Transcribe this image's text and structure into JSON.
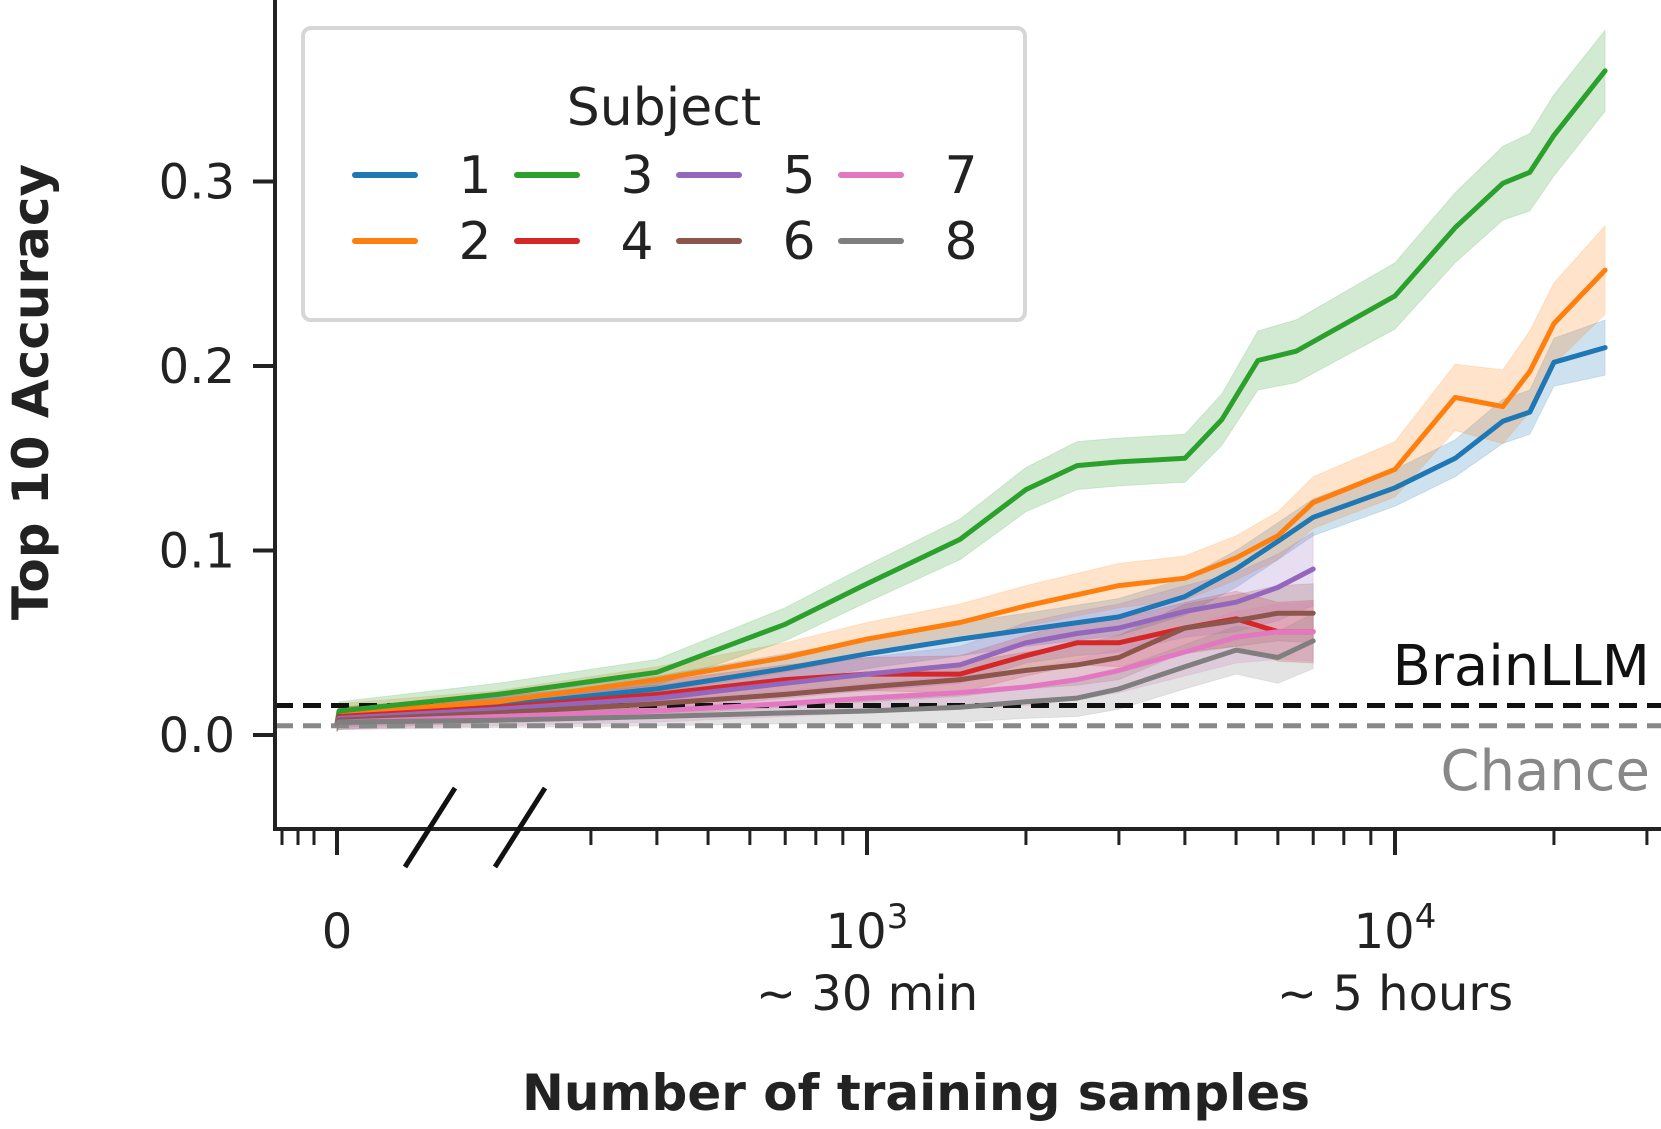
{
  "chart_data": {
    "type": "line",
    "xlabel": "Number of training samples",
    "ylabel": "Top 10 Accuracy",
    "x_scale": "log (with 0 shown before axis break)",
    "xlim": [
      0,
      30000
    ],
    "ylim": [
      -0.05,
      0.4
    ],
    "y_ticks": [
      {
        "value": 0.0,
        "label": "0.0"
      },
      {
        "value": 0.1,
        "label": "0.1"
      },
      {
        "value": 0.2,
        "label": "0.2"
      },
      {
        "value": 0.3,
        "label": "0.3"
      }
    ],
    "x_tick_labels": [
      {
        "value": 0,
        "label": "0",
        "sub": ""
      },
      {
        "value": 1000,
        "label": "10",
        "exp": "3",
        "sub": "~  30 min"
      },
      {
        "value": 10000,
        "label": "10",
        "exp": "4",
        "sub": "~  5 hours"
      }
    ],
    "legend": {
      "title": "Subject",
      "position": "top-left",
      "columns": 4
    },
    "reference_lines": [
      {
        "name": "BrainLLM",
        "y": 0.016,
        "color": "#111111",
        "style": "dashed"
      },
      {
        "name": "Chance",
        "y": 0.005,
        "color": "#888888",
        "style": "dashed"
      }
    ],
    "series": [
      {
        "name": "1",
        "color": "#1f77b4",
        "x": [
          0,
          100,
          200,
          400,
          700,
          1000,
          1500,
          2000,
          3000,
          4000,
          5000,
          6000,
          7000,
          10000,
          13000,
          16000,
          18000,
          20000,
          25000
        ],
        "y": [
          0.006,
          0.01,
          0.016,
          0.025,
          0.036,
          0.044,
          0.052,
          0.057,
          0.064,
          0.075,
          0.09,
          0.105,
          0.118,
          0.134,
          0.15,
          0.17,
          0.175,
          0.202,
          0.21
        ],
        "band": [
          0.004,
          0.005,
          0.006,
          0.007,
          0.008,
          0.008,
          0.009,
          0.009,
          0.01,
          0.01,
          0.01,
          0.01,
          0.01,
          0.01,
          0.01,
          0.012,
          0.012,
          0.013,
          0.015
        ]
      },
      {
        "name": "2",
        "color": "#ff7f0e",
        "x": [
          0,
          100,
          200,
          400,
          700,
          1000,
          1500,
          2000,
          3000,
          4000,
          5000,
          6000,
          7000,
          10000,
          13000,
          16000,
          18000,
          20000,
          25000
        ],
        "y": [
          0.006,
          0.012,
          0.018,
          0.03,
          0.042,
          0.052,
          0.061,
          0.07,
          0.081,
          0.085,
          0.096,
          0.108,
          0.126,
          0.144,
          0.183,
          0.178,
          0.197,
          0.223,
          0.252
        ],
        "band": [
          0.004,
          0.005,
          0.006,
          0.007,
          0.008,
          0.009,
          0.01,
          0.011,
          0.012,
          0.012,
          0.012,
          0.013,
          0.014,
          0.015,
          0.018,
          0.02,
          0.022,
          0.022,
          0.024
        ]
      },
      {
        "name": "3",
        "color": "#2ca02c",
        "x": [
          0,
          100,
          200,
          400,
          700,
          1000,
          1500,
          2000,
          2500,
          3000,
          4000,
          4700,
          5500,
          6500,
          10000,
          13000,
          16000,
          18000,
          20000,
          25000
        ],
        "y": [
          0.006,
          0.013,
          0.022,
          0.034,
          0.06,
          0.082,
          0.106,
          0.133,
          0.146,
          0.148,
          0.15,
          0.171,
          0.203,
          0.208,
          0.238,
          0.275,
          0.299,
          0.305,
          0.325,
          0.36
        ],
        "band": [
          0.004,
          0.005,
          0.006,
          0.007,
          0.009,
          0.01,
          0.011,
          0.012,
          0.013,
          0.013,
          0.013,
          0.014,
          0.016,
          0.017,
          0.018,
          0.019,
          0.02,
          0.021,
          0.022,
          0.022
        ]
      },
      {
        "name": "4",
        "color": "#d62728",
        "x": [
          0,
          100,
          200,
          400,
          700,
          1000,
          1500,
          2000,
          2500,
          3000,
          4000,
          5000,
          6000,
          7000
        ],
        "y": [
          0.006,
          0.01,
          0.015,
          0.022,
          0.03,
          0.033,
          0.033,
          0.043,
          0.05,
          0.05,
          0.058,
          0.063,
          0.056,
          0.056
        ],
        "band": [
          0.004,
          0.005,
          0.006,
          0.007,
          0.008,
          0.009,
          0.01,
          0.011,
          0.012,
          0.013,
          0.014,
          0.015,
          0.016,
          0.017
        ]
      },
      {
        "name": "5",
        "color": "#9467bd",
        "x": [
          0,
          100,
          200,
          400,
          700,
          1000,
          1500,
          2000,
          2500,
          3000,
          4000,
          5000,
          6000,
          7000
        ],
        "y": [
          0.006,
          0.009,
          0.014,
          0.02,
          0.028,
          0.033,
          0.038,
          0.05,
          0.055,
          0.058,
          0.067,
          0.072,
          0.08,
          0.09
        ],
        "band": [
          0.004,
          0.005,
          0.006,
          0.007,
          0.008,
          0.009,
          0.01,
          0.011,
          0.012,
          0.013,
          0.014,
          0.016,
          0.018,
          0.02
        ]
      },
      {
        "name": "6",
        "color": "#8c564b",
        "x": [
          0,
          100,
          200,
          400,
          700,
          1000,
          1500,
          2000,
          2500,
          3000,
          4000,
          5000,
          6000,
          7000
        ],
        "y": [
          0.006,
          0.008,
          0.012,
          0.017,
          0.022,
          0.026,
          0.03,
          0.035,
          0.038,
          0.042,
          0.058,
          0.062,
          0.066,
          0.066
        ],
        "band": [
          0.004,
          0.005,
          0.005,
          0.006,
          0.007,
          0.008,
          0.009,
          0.01,
          0.011,
          0.012,
          0.013,
          0.014,
          0.015,
          0.016
        ]
      },
      {
        "name": "7",
        "color": "#e377c2",
        "x": [
          0,
          100,
          200,
          400,
          700,
          1000,
          1500,
          2000,
          2500,
          3000,
          4000,
          5000,
          6000,
          7000
        ],
        "y": [
          0.006,
          0.007,
          0.01,
          0.013,
          0.017,
          0.02,
          0.023,
          0.026,
          0.03,
          0.035,
          0.045,
          0.053,
          0.056,
          0.056
        ],
        "band": [
          0.003,
          0.004,
          0.005,
          0.006,
          0.007,
          0.008,
          0.009,
          0.01,
          0.011,
          0.012,
          0.013,
          0.014,
          0.015,
          0.016
        ]
      },
      {
        "name": "8",
        "color": "#7f7f7f",
        "x": [
          0,
          100,
          200,
          400,
          700,
          1000,
          1500,
          2000,
          2500,
          3000,
          4000,
          5000,
          6000,
          7000
        ],
        "y": [
          0.006,
          0.007,
          0.008,
          0.01,
          0.012,
          0.013,
          0.015,
          0.018,
          0.02,
          0.025,
          0.037,
          0.046,
          0.042,
          0.051
        ],
        "band": [
          0.003,
          0.004,
          0.004,
          0.005,
          0.006,
          0.007,
          0.008,
          0.009,
          0.01,
          0.011,
          0.012,
          0.013,
          0.014,
          0.015
        ]
      }
    ]
  }
}
